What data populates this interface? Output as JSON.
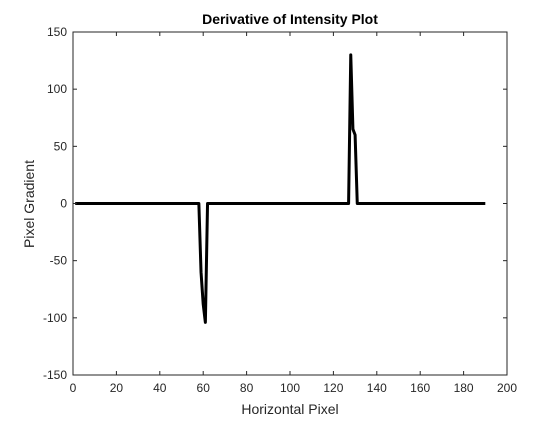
{
  "chart_data": {
    "type": "line",
    "title": "Derivative of Intensity Plot",
    "xlabel": "Horizontal Pixel",
    "ylabel": "Pixel Gradient",
    "xlim": [
      0,
      200
    ],
    "ylim": [
      -150,
      150
    ],
    "xticks": [
      0,
      20,
      40,
      60,
      80,
      100,
      120,
      140,
      160,
      180,
      200
    ],
    "yticks": [
      -150,
      -100,
      -50,
      0,
      50,
      100,
      150
    ],
    "grid": false,
    "legend": "none",
    "line_color": "#000000",
    "series": [
      {
        "x": [
          1,
          57,
          58,
          59,
          60,
          61,
          62,
          126,
          127,
          128,
          129,
          130,
          131,
          190
        ],
        "y": [
          0,
          0,
          0,
          -60,
          -88,
          -104,
          0,
          0,
          0,
          130,
          65,
          60,
          0,
          0
        ]
      }
    ]
  }
}
